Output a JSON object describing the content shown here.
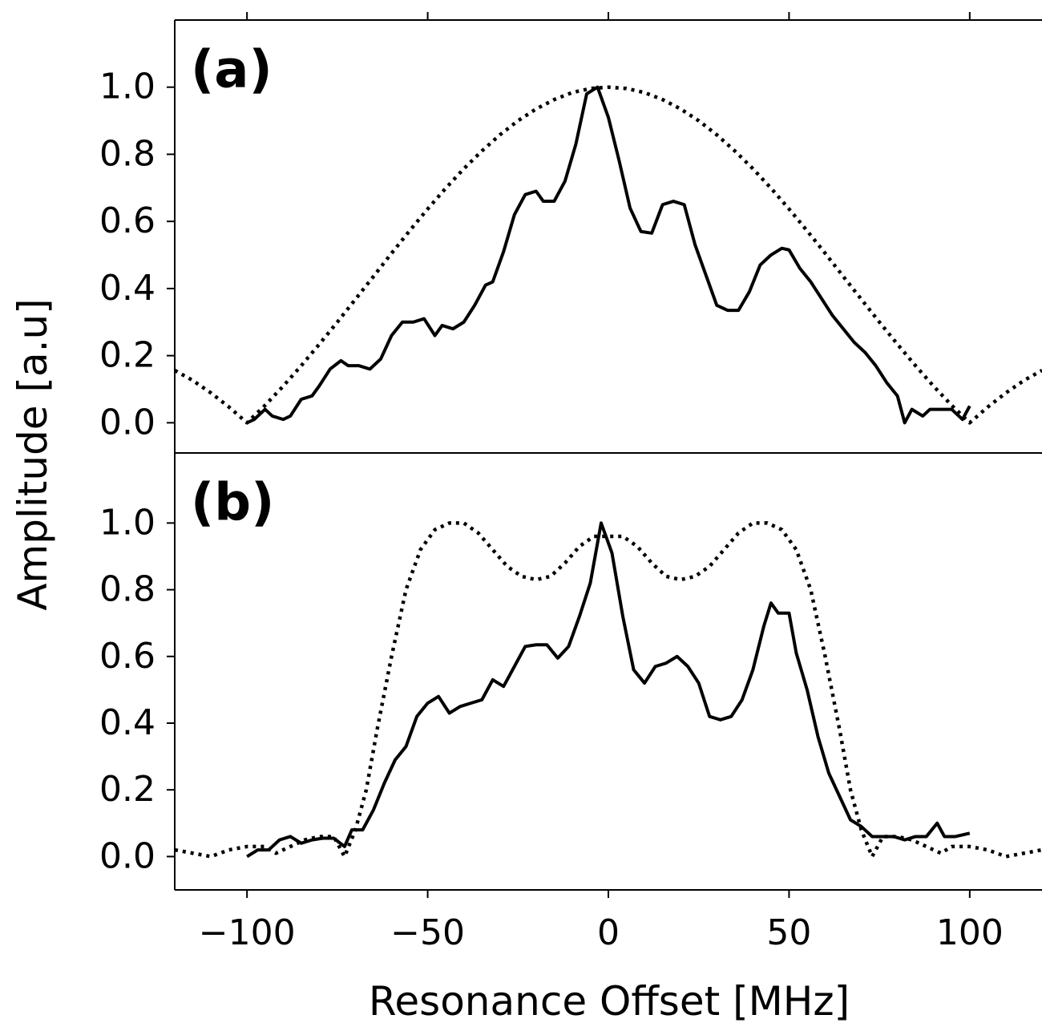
{
  "chart_data": [
    {
      "type": "line",
      "annotation": "(a)",
      "ylabel": "Amplitude [a.u]",
      "xlim": [
        -120,
        120
      ],
      "ylim": [
        -0.09,
        1.2
      ],
      "xticks": [
        -100,
        -50,
        0,
        50,
        100
      ],
      "yticks": [
        {
          "value": 0,
          "label": "0.0"
        },
        {
          "value": 0.2,
          "label": "0.2"
        },
        {
          "value": 0.4,
          "label": "0.4"
        },
        {
          "value": 0.6,
          "label": "0.6"
        },
        {
          "value": 0.8,
          "label": "0.8"
        },
        {
          "value": 1,
          "label": "1.0"
        }
      ],
      "series": [
        {
          "color": "#000000",
          "style": "dotted",
          "x": [
            -120,
            -115,
            -110,
            -105,
            -100,
            -95,
            -90,
            -85,
            -80,
            -75,
            -70,
            -65,
            -60,
            -55,
            -50,
            -45,
            -40,
            -35,
            -30,
            -25,
            -20,
            -15,
            -10,
            -5,
            0,
            5,
            10,
            15,
            20,
            25,
            30,
            35,
            40,
            45,
            50,
            55,
            60,
            65,
            70,
            75,
            80,
            85,
            90,
            95,
            100,
            105,
            110,
            115,
            120
          ],
          "values": [
            0.156,
            0.126,
            0.089,
            0.047,
            0,
            0.052,
            0.109,
            0.17,
            0.234,
            0.3,
            0.368,
            0.436,
            0.505,
            0.572,
            0.637,
            0.699,
            0.757,
            0.81,
            0.858,
            0.9,
            0.935,
            0.963,
            0.984,
            0.996,
            1,
            0.996,
            0.984,
            0.963,
            0.935,
            0.9,
            0.858,
            0.81,
            0.757,
            0.699,
            0.637,
            0.572,
            0.505,
            0.436,
            0.368,
            0.3,
            0.234,
            0.17,
            0.109,
            0.052,
            0,
            0.047,
            0.089,
            0.126,
            0.156
          ]
        },
        {
          "color": "#000000",
          "style": "solid",
          "x": [
            -100,
            -98,
            -95,
            -93,
            -90,
            -88,
            -85,
            -82,
            -80,
            -77,
            -74,
            -72,
            -69,
            -66,
            -63,
            -60,
            -57,
            -54,
            -51,
            -48,
            -46,
            -43,
            -40,
            -37,
            -34,
            -32,
            -29,
            -26,
            -23,
            -20,
            -18,
            -15,
            -12,
            -9,
            -6,
            -3,
            0,
            3,
            6,
            9,
            12,
            15,
            18,
            21,
            24,
            27,
            30,
            33,
            36,
            39,
            42,
            45,
            48,
            50,
            53,
            56,
            59,
            62,
            65,
            68,
            71,
            74,
            77,
            80,
            82,
            84,
            87,
            89,
            92,
            95,
            98,
            100
          ],
          "values": [
            0,
            0.01,
            0.04,
            0.02,
            0.01,
            0.02,
            0.07,
            0.08,
            0.11,
            0.16,
            0.185,
            0.17,
            0.17,
            0.16,
            0.19,
            0.26,
            0.3,
            0.3,
            0.31,
            0.26,
            0.29,
            0.28,
            0.3,
            0.35,
            0.41,
            0.42,
            0.51,
            0.62,
            0.68,
            0.69,
            0.66,
            0.66,
            0.72,
            0.83,
            0.98,
            1,
            0.91,
            0.78,
            0.64,
            0.57,
            0.565,
            0.65,
            0.66,
            0.65,
            0.53,
            0.44,
            0.35,
            0.335,
            0.335,
            0.39,
            0.47,
            0.5,
            0.52,
            0.515,
            0.46,
            0.42,
            0.37,
            0.32,
            0.28,
            0.24,
            0.21,
            0.17,
            0.12,
            0.08,
            0,
            0.04,
            0.02,
            0.04,
            0.04,
            0.04,
            0.01,
            0.05
          ]
        }
      ]
    },
    {
      "type": "line",
      "annotation": "(b)",
      "xlabel": "Resonance Offset [MHz]",
      "xlim": [
        -120,
        120
      ],
      "ylim": [
        -0.1,
        1.21
      ],
      "xticks": [
        {
          "value": -100,
          "label": "−100"
        },
        {
          "value": -50,
          "label": "−50"
        },
        0,
        50,
        100
      ],
      "yticks": [
        {
          "value": 0,
          "label": "0.0"
        },
        {
          "value": 0.2,
          "label": "0.2"
        },
        {
          "value": 0.4,
          "label": "0.4"
        },
        {
          "value": 0.6,
          "label": "0.6"
        },
        {
          "value": 0.8,
          "label": "0.8"
        },
        {
          "value": 1,
          "label": "1.0"
        }
      ],
      "series": [
        {
          "color": "#000000",
          "style": "dotted",
          "x": [
            -120,
            -115,
            -110,
            -105,
            -100,
            -95,
            -92,
            -88,
            -84,
            -80,
            -76,
            -73,
            -70,
            -67,
            -64,
            -60,
            -56,
            -52,
            -48,
            -44,
            -40,
            -36,
            -32,
            -28,
            -24,
            -20,
            -16,
            -12,
            -8,
            -4,
            0,
            4,
            8,
            12,
            16,
            20,
            24,
            28,
            32,
            36,
            40,
            44,
            48,
            52,
            56,
            60,
            64,
            67,
            70,
            73,
            76,
            80,
            84,
            88,
            92,
            95,
            100,
            105,
            110,
            115,
            120
          ],
          "values": [
            0.02,
            0.01,
            0,
            0.02,
            0.03,
            0.03,
            0.01,
            0.03,
            0.05,
            0.06,
            0.06,
            0,
            0.08,
            0.2,
            0.38,
            0.6,
            0.8,
            0.92,
            0.98,
            1,
            1,
            0.97,
            0.92,
            0.87,
            0.84,
            0.83,
            0.84,
            0.88,
            0.93,
            0.96,
            0.96,
            0.96,
            0.93,
            0.88,
            0.84,
            0.83,
            0.84,
            0.87,
            0.92,
            0.97,
            1,
            1,
            0.98,
            0.92,
            0.8,
            0.6,
            0.38,
            0.2,
            0.08,
            0,
            0.06,
            0.06,
            0.05,
            0.03,
            0.01,
            0.03,
            0.03,
            0.02,
            0,
            0.01,
            0.02
          ]
        },
        {
          "color": "#000000",
          "style": "solid",
          "x": [
            -100,
            -97,
            -94,
            -91,
            -88,
            -85,
            -82,
            -79,
            -76,
            -73,
            -71,
            -68,
            -65,
            -62,
            -59,
            -56,
            -53,
            -50,
            -47,
            -44,
            -41,
            -38,
            -35,
            -32,
            -29,
            -26,
            -23,
            -20,
            -17,
            -14,
            -11,
            -8,
            -5,
            -2,
            1,
            4,
            7,
            10,
            13,
            16,
            19,
            22,
            25,
            28,
            31,
            34,
            37,
            40,
            43,
            45,
            47,
            50,
            52,
            55,
            58,
            61,
            64,
            67,
            70,
            73,
            76,
            79,
            82,
            85,
            88,
            91,
            93,
            96,
            100
          ],
          "values": [
            0,
            0.02,
            0.02,
            0.05,
            0.06,
            0.04,
            0.05,
            0.055,
            0.055,
            0.03,
            0.08,
            0.08,
            0.14,
            0.22,
            0.29,
            0.33,
            0.42,
            0.46,
            0.48,
            0.43,
            0.45,
            0.46,
            0.47,
            0.53,
            0.51,
            0.57,
            0.63,
            0.635,
            0.635,
            0.595,
            0.63,
            0.72,
            0.82,
            1,
            0.91,
            0.72,
            0.56,
            0.52,
            0.57,
            0.58,
            0.6,
            0.57,
            0.52,
            0.42,
            0.41,
            0.42,
            0.47,
            0.56,
            0.69,
            0.76,
            0.73,
            0.73,
            0.61,
            0.5,
            0.36,
            0.25,
            0.18,
            0.11,
            0.09,
            0.06,
            0.06,
            0.06,
            0.05,
            0.06,
            0.06,
            0.1,
            0.06,
            0.06,
            0.07
          ]
        }
      ]
    }
  ]
}
